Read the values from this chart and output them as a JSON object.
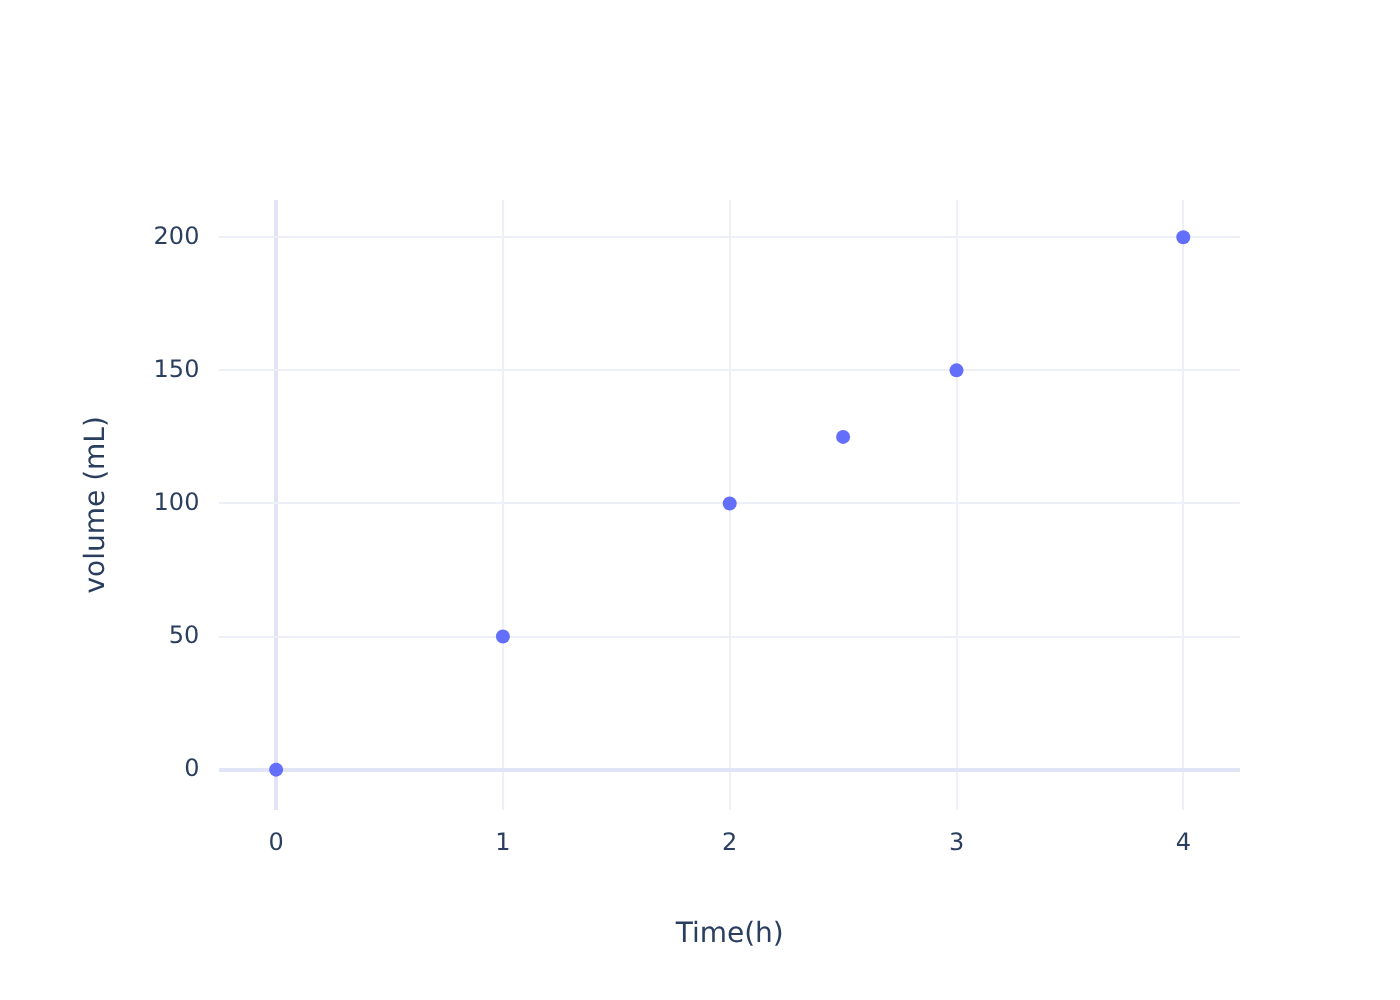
{
  "chart_data": {
    "type": "scatter",
    "xlabel": "Time(h)",
    "ylabel": "volume (mL)",
    "x": [
      0,
      1,
      2,
      2.5,
      3,
      4
    ],
    "series": [
      {
        "color": "#636efa",
        "values": [
          0,
          50,
          100,
          125,
          150,
          200
        ]
      }
    ],
    "xlim": [
      -0.25,
      4.25
    ],
    "xticks": [
      0,
      1,
      2,
      3,
      4
    ],
    "ylim": [
      -15,
      214
    ],
    "yticks": [
      0,
      50,
      100,
      150,
      200
    ],
    "grid": true,
    "legend": false,
    "marker": "circle"
  }
}
